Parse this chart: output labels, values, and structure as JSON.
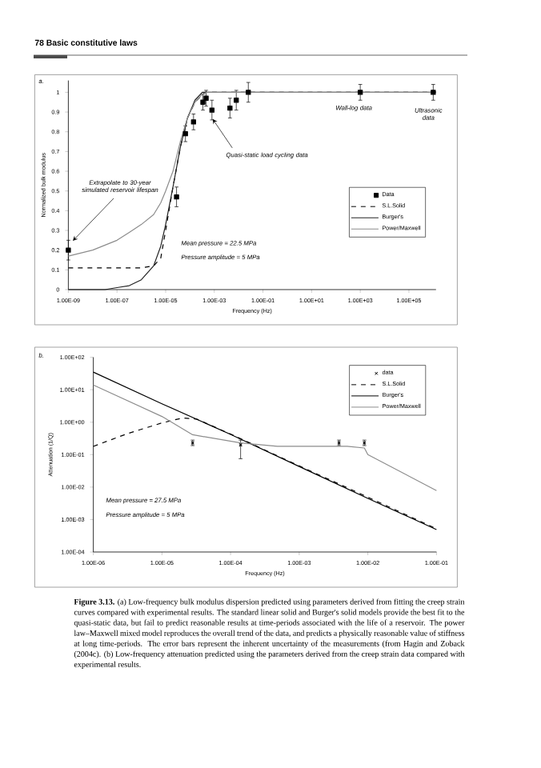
{
  "chart_data": [
    {
      "type": "line",
      "xlabel": "Frequency (Hz)",
      "ylabel": "Normalized bulk modulus",
      "log": "x",
      "xlim": [
        1e-09,
        1300000.0
      ],
      "ylim": [
        0,
        1.06
      ],
      "xticks": [
        {
          "value": 1e-09,
          "label": "1.00E-09"
        },
        {
          "value": 1e-07,
          "label": "1.00E-07"
        },
        {
          "value": 1e-05,
          "label": "1.00E-05"
        },
        {
          "value": 0.001,
          "label": "1.00E-03"
        },
        {
          "value": 0.1,
          "label": "1.00E-01"
        },
        {
          "value": 10,
          "label": "1.00E+01"
        },
        {
          "value": 1000,
          "label": "1.00E+03"
        },
        {
          "value": 100000,
          "label": "1.00E+05"
        }
      ],
      "yticks": [
        0,
        0.1,
        0.2,
        0.3,
        0.4,
        0.5,
        0.6,
        0.7,
        0.8,
        0.9,
        1
      ],
      "legend": "center right",
      "series": [
        {
          "name": "Data",
          "type": "scatter",
          "color": "#000000",
          "marker": "square",
          "x": [
            1e-09,
            2.8e-05,
            6.5e-05,
            0.00014,
            0.00034,
            0.00046,
            0.0008,
            0.0044,
            0.008,
            0.025,
            1000,
            1000000.0
          ],
          "values": [
            0.2,
            0.47,
            0.79,
            0.85,
            0.95,
            0.97,
            0.91,
            0.92,
            0.96,
            1,
            1,
            1
          ],
          "errors": [
            0.05,
            0.05,
            0.04,
            0.04,
            0.04,
            0.04,
            0.05,
            0.05,
            0.05,
            0.05,
            0.04,
            0.04
          ]
        },
        {
          "name": "S.L.Solid",
          "color": "#000000",
          "line_style": "dashed",
          "x": [
            1e-09,
            1e-06,
            3.2e-06,
            6.3e-06,
            1e-05,
            2e-05,
            4e-05,
            7.9e-05,
            0.00016,
            0.0004,
            1300000.0
          ],
          "values": [
            0.11,
            0.11,
            0.12,
            0.16,
            0.3,
            0.52,
            0.72,
            0.87,
            0.95,
            1,
            1
          ]
        },
        {
          "name": "Burger's",
          "color": "#222222",
          "x": [
            1e-09,
            3.2e-08,
            1e-07,
            3.2e-07,
            1e-06,
            3.2e-06,
            6.3e-06,
            1e-05,
            2e-05,
            4e-05,
            7.9e-05,
            0.00016,
            0.00032,
            1300000.0
          ],
          "values": [
            0,
            0,
            0.01,
            0.02,
            0.05,
            0.12,
            0.22,
            0.33,
            0.52,
            0.72,
            0.87,
            0.96,
            1,
            1
          ]
        },
        {
          "name": "Power/Maxwell",
          "color": "#8c8c8c",
          "x": [
            1e-09,
            1e-08,
            1e-07,
            3.2e-07,
            1e-06,
            3.2e-06,
            6.3e-06,
            1e-05,
            2e-05,
            4e-05,
            7.9e-05,
            0.00016,
            0.00032,
            0.0005,
            1300000.0
          ],
          "values": [
            0.17,
            0.2,
            0.25,
            0.29,
            0.33,
            0.38,
            0.44,
            0.5,
            0.6,
            0.75,
            0.87,
            0.95,
            0.99,
            1,
            1
          ]
        }
      ],
      "annotations": [
        "78 Basic constitutive laws",
        "a.",
        {
          "text": "Wall-log data",
          "x": 1000,
          "y": 1
        },
        {
          "text": "Ultrasonic data",
          "x": 1000000.0,
          "y": 1
        },
        {
          "text": "Quasi-static load cycling data",
          "x": 0.0008,
          "y": 0.87
        },
        "Extrapolate to 30-year simulated reservoir lifespan",
        "Mean pressure = 22.5 MPa",
        "Pressure amplitude = 5 MPa"
      ]
    },
    {
      "type": "line",
      "xlabel": "Frequency (Hz)",
      "ylabel": "Attenuation (1/Q)",
      "log": "xy",
      "xlim": [
        1e-06,
        0.1
      ],
      "ylim": [
        0.0001,
        100
      ],
      "xticks": [
        {
          "value": 1e-06,
          "label": "1.00E-06"
        },
        {
          "value": 1e-05,
          "label": "1.00E-05"
        },
        {
          "value": 0.0001,
          "label": "1.00E-04"
        },
        {
          "value": 0.001,
          "label": "1.00E-03"
        },
        {
          "value": 0.01,
          "label": "1.00E-02"
        },
        {
          "value": 0.1,
          "label": "1.00E-01"
        }
      ],
      "yticks": [
        {
          "value": 0.0001,
          "label": "1.00E-04"
        },
        {
          "value": 0.001,
          "label": "1.00E-03"
        },
        {
          "value": 0.01,
          "label": "1.00E-02"
        },
        {
          "value": 0.1,
          "label": "1.00E-01"
        },
        {
          "value": 1,
          "label": "1.00E+00"
        },
        {
          "value": 10,
          "label": "1.00E+01"
        },
        {
          "value": 100,
          "label": "1.00E+02"
        }
      ],
      "legend": "top right",
      "series": [
        {
          "name": "data",
          "type": "scatter",
          "color": "#000000",
          "marker": "cross",
          "x": [
            2.8e-05,
            0.00014,
            0.0038,
            0.0089
          ],
          "values": [
            0.23,
            0.2,
            0.23,
            0.23
          ],
          "errors": [
            [
              0.19,
              0.28
            ],
            [
              0.075,
              0.28
            ],
            [
              0.19,
              0.28
            ],
            [
              0.19,
              0.28
            ]
          ]
        },
        {
          "name": "S.L.Solid",
          "color": "#000000",
          "line_style": "dashed",
          "x": [
            1e-06,
            3.2e-06,
            1e-05,
            2e-05,
            3.2e-05,
            0.0001,
            0.001,
            0.01,
            0.1
          ],
          "values": [
            0.18,
            0.45,
            0.95,
            1.35,
            1.25,
            0.43,
            0.045,
            0.0049,
            0.00052
          ]
        },
        {
          "name": "Burger's",
          "color": "#000000",
          "x": [
            1e-06,
            1e-05,
            0.0001,
            0.001,
            0.01,
            0.1
          ],
          "values": [
            35,
            3.7,
            0.42,
            0.043,
            0.0045,
            0.00049
          ]
        },
        {
          "name": "Power/Maxwell",
          "color": "#8c8c8c",
          "x": [
            1e-06,
            1e-05,
            2.8e-05,
            0.00014,
            0.00048,
            0.005,
            0.0089,
            0.01,
            0.1
          ],
          "values": [
            14,
            1.5,
            0.41,
            0.23,
            0.18,
            0.18,
            0.16,
            0.1,
            0.0078
          ]
        }
      ],
      "annotations": [
        "b.",
        "Mean pressure = 27.5 MPa",
        "Pressure amplitude = 5 MPa",
        "**Figure 3.13.** (a) Low-frequency bulk modulus dispersion predicted using parameters derived from fitting the creep strain curves compared with experimental results. The standard linear solid and Burger's solid models provide the best fit to the quasi-static data, but fail to predict reasonable results at time-periods associated with the life of a reservoir. The power law–Maxwell mixed model reproduces the overall trend of the data, and predicts a physically reasonable value of stiffness at long time-periods. The error bars represent the inherent uncertainty of the measurements (from Hagin and Zoback (2004c). (b) Low-frequency attenuation predicted using the parameters derived from the creep strain data compared with experimental results."
      ]
    }
  ]
}
